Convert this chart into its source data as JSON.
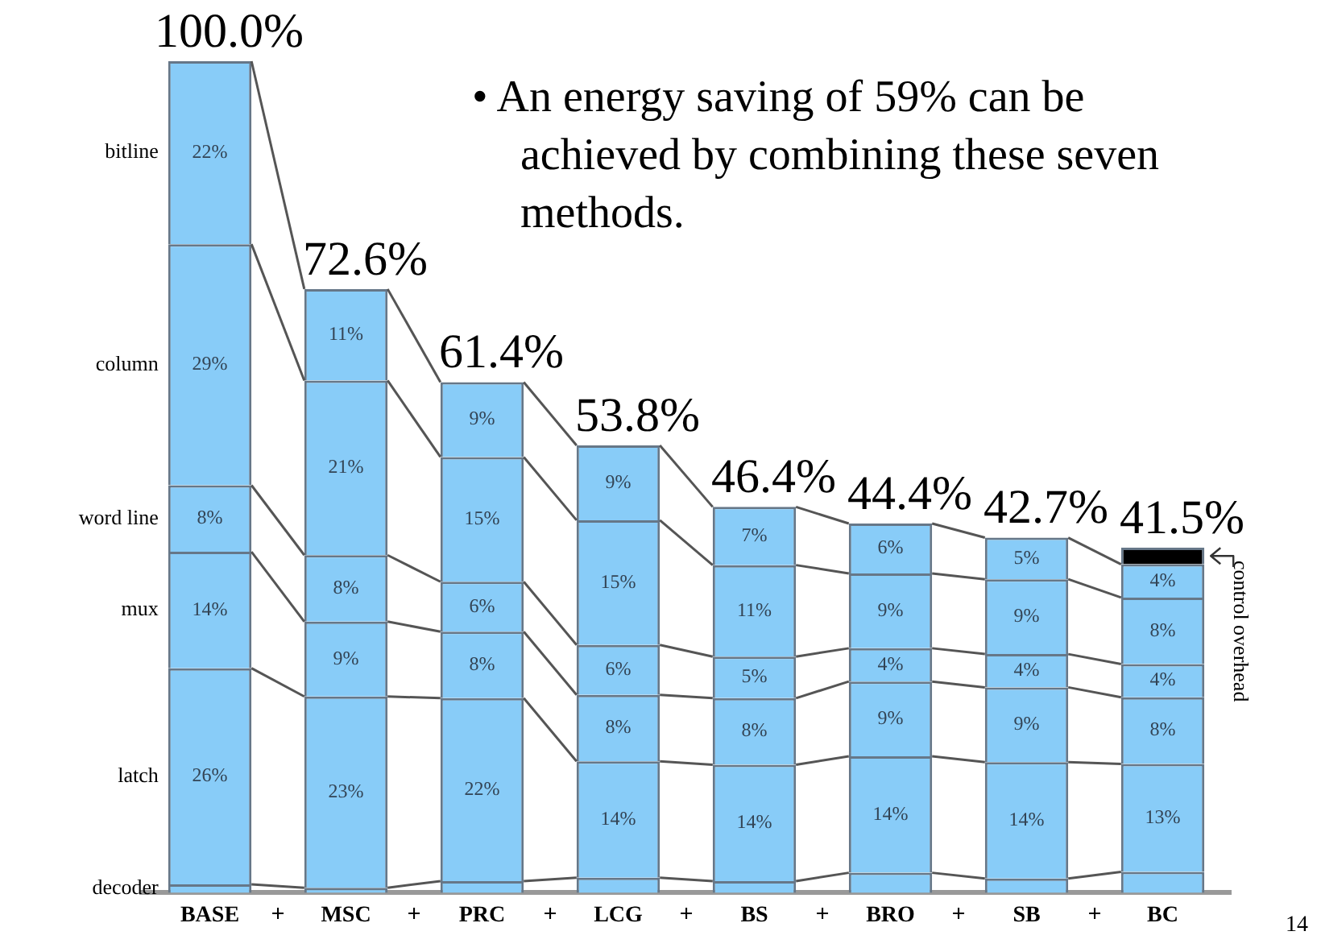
{
  "chart_data": {
    "type": "bar",
    "stacked": true,
    "categories": [
      "BASE",
      "MSC",
      "PRC",
      "LCG",
      "BS",
      "BRO",
      "SB",
      "BC"
    ],
    "series": [
      {
        "name": "decoder",
        "color": "#88ccf8",
        "values": [
          1,
          0.6,
          1.4,
          1.8,
          1.4,
          2.4,
          1.7,
          2.5
        ],
        "value_labels": [
          null,
          null,
          null,
          null,
          null,
          null,
          null,
          null
        ]
      },
      {
        "name": "latch",
        "color": "#88ccf8",
        "values": [
          26,
          23,
          22,
          14,
          14,
          14,
          14,
          13
        ],
        "value_labels": [
          "26%",
          "23%",
          "22%",
          "14%",
          "14%",
          "14%",
          "14%",
          "13%"
        ]
      },
      {
        "name": "mux",
        "color": "#88ccf8",
        "values": [
          14,
          9,
          8,
          8,
          8,
          9,
          9,
          8
        ],
        "value_labels": [
          "14%",
          "9%",
          "8%",
          "8%",
          "8%",
          "9%",
          "9%",
          "8%"
        ]
      },
      {
        "name": "word line",
        "color": "#88ccf8",
        "values": [
          8,
          8,
          6,
          6,
          5,
          4,
          4,
          4
        ],
        "value_labels": [
          "8%",
          "8%",
          "6%",
          "6%",
          "5%",
          "4%",
          "4%",
          "4%"
        ]
      },
      {
        "name": "column",
        "color": "#88ccf8",
        "values": [
          29,
          21,
          15,
          15,
          11,
          9,
          9,
          8
        ],
        "value_labels": [
          "29%",
          "21%",
          "15%",
          "15%",
          "11%",
          "9%",
          "9%",
          "8%"
        ]
      },
      {
        "name": "bitline",
        "color": "#88ccf8",
        "values": [
          22,
          11,
          9,
          9,
          7,
          6,
          5,
          4
        ],
        "value_labels": [
          "22%",
          "11%",
          "9%",
          "9%",
          "7%",
          "6%",
          "5%",
          "4%"
        ]
      },
      {
        "name": "control overhead",
        "color": "#000000",
        "values": [
          null,
          null,
          null,
          null,
          null,
          null,
          null,
          2
        ],
        "value_labels": [
          null,
          null,
          null,
          null,
          null,
          null,
          null,
          null
        ]
      }
    ],
    "totals": [
      "100.0%",
      "72.6%",
      "61.4%",
      "53.8%",
      "46.4%",
      "44.4%",
      "42.7%",
      "41.5%"
    ],
    "ylim": [
      0,
      100
    ],
    "legend": false,
    "grid": false,
    "annotations": [
      "• An energy saving of 59% can be achieved by combining these seven methods.",
      "+",
      "+",
      "+",
      "+",
      "+",
      "+",
      "+",
      "14"
    ]
  }
}
